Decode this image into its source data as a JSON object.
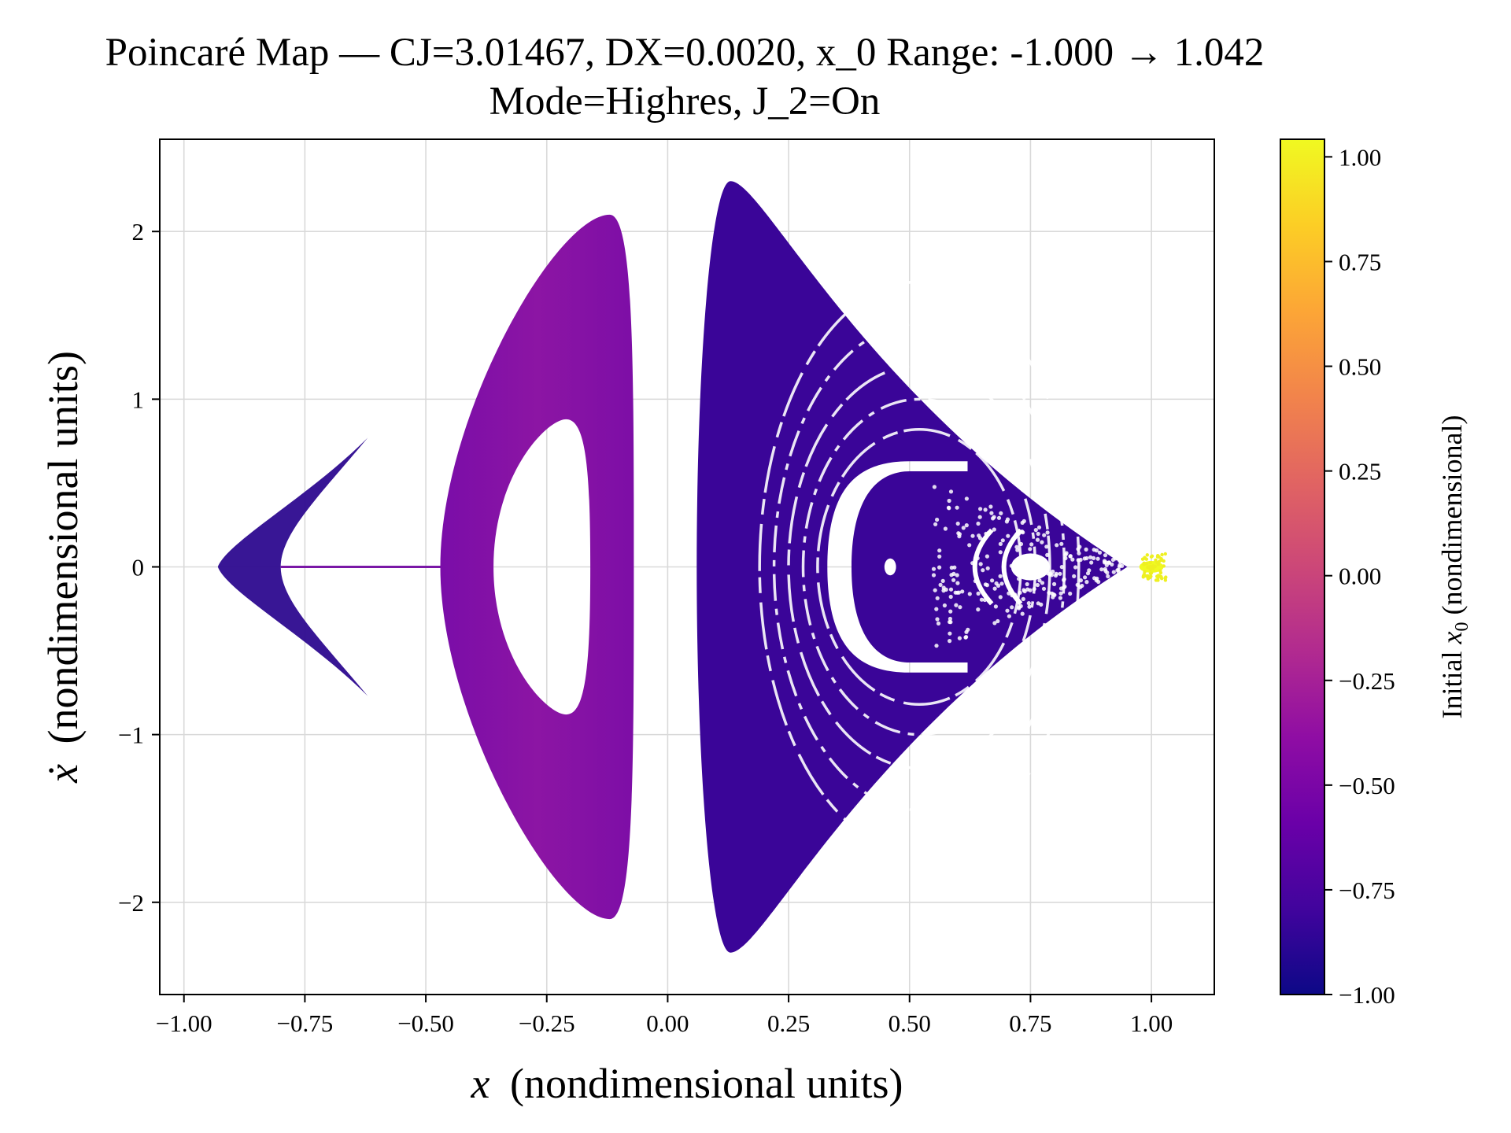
{
  "chart_data": {
    "type": "scatter",
    "title": "Poincaré Map — CJ=3.01467, DX=0.0020, x_0 Range: -1.000 → 1.042",
    "subtitle": "Mode=Highres, J_2=On",
    "xlabel_symbol": "x",
    "xlabel": "(nondimensional units)",
    "ylabel_symbol": "ẋ",
    "ylabel": "(nondimensional units)",
    "xlim": [
      -1.05,
      1.13
    ],
    "ylim": [
      -2.55,
      2.55
    ],
    "xticks": [
      -1.0,
      -0.75,
      -0.5,
      -0.25,
      0.0,
      0.25,
      0.5,
      0.75,
      1.0
    ],
    "xtick_labels": [
      "−1.00",
      "−0.75",
      "−0.50",
      "−0.25",
      "0.00",
      "0.25",
      "0.50",
      "0.75",
      "1.00"
    ],
    "yticks": [
      -2,
      -1,
      0,
      1,
      2
    ],
    "ytick_labels": [
      "−2",
      "−1",
      "0",
      "1",
      "2"
    ],
    "grid": true,
    "colormap": "plasma",
    "colorbar": {
      "label_prefix": "Initial ",
      "label_symbol": "x",
      "label_subscript": "0",
      "label_suffix": " (nondimensional)",
      "range": [
        -1.0,
        1.042
      ],
      "ticks": [
        -1.0,
        -0.75,
        -0.5,
        -0.25,
        0.0,
        0.25,
        0.5,
        0.75,
        1.0
      ],
      "tick_labels": [
        "−1.00",
        "−0.75",
        "−0.50",
        "−0.25",
        "0.00",
        "0.25",
        "0.50",
        "0.75",
        "1.00"
      ]
    },
    "regions": [
      {
        "name": "left-chevron",
        "x_range": [
          -0.93,
          -0.62
        ],
        "y_range": [
          -0.77,
          0.77
        ],
        "color_value": -0.92
      },
      {
        "name": "stem",
        "x_range": [
          -0.8,
          -0.47
        ],
        "y": 0.0,
        "color_value": -0.6
      },
      {
        "name": "middle-ring",
        "x_range": [
          -0.47,
          -0.07
        ],
        "y_range": [
          -2.1,
          2.1
        ],
        "hole_x_range": [
          -0.36,
          -0.16
        ],
        "hole_y_range": [
          -0.88,
          0.88
        ],
        "color_value": -0.55
      },
      {
        "name": "right-triangle",
        "x_range": [
          0.06,
          0.95
        ],
        "y_range": [
          -2.3,
          2.3
        ],
        "color_value": -0.82
      },
      {
        "name": "right-cluster",
        "x_range": [
          0.98,
          1.03
        ],
        "y_range": [
          -0.08,
          0.08
        ],
        "color_value": 1.0
      }
    ]
  }
}
